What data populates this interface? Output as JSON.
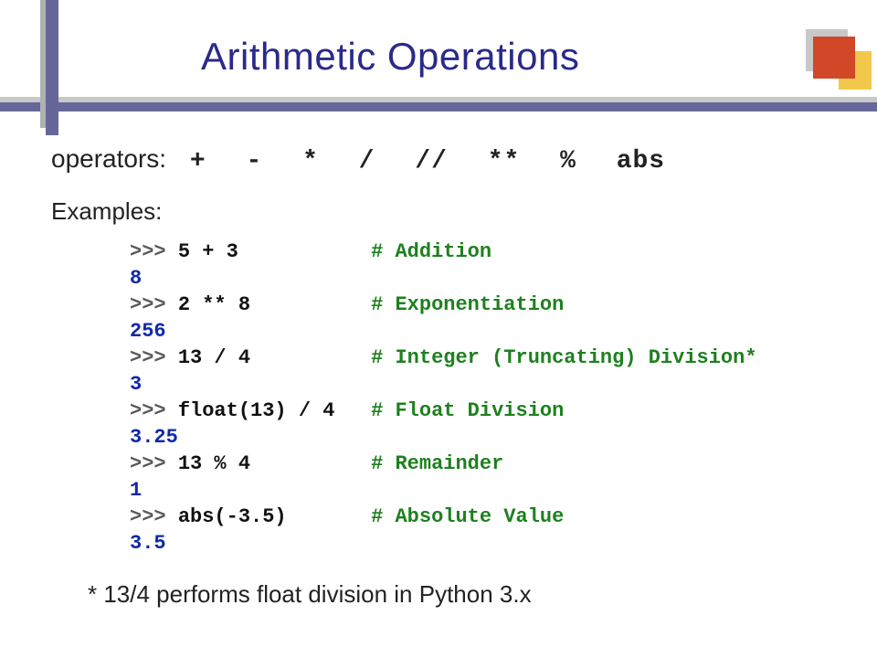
{
  "title": "Arithmetic Operations",
  "operators_label": "operators:",
  "operators_list": "+  -  *  /  //  **  %  abs",
  "examples_label": "Examples:",
  "code": {
    "prompt": ">>> ",
    "lines": [
      {
        "expr": "5 + 3",
        "pad": 11,
        "comment": "# Addition"
      },
      {
        "result": "8"
      },
      {
        "expr": "2 ** 8",
        "pad": 10,
        "comment": "# Exponentiation"
      },
      {
        "result": "256"
      },
      {
        "expr": "13 / 4",
        "pad": 10,
        "comment": "# Integer (Truncating) Division*"
      },
      {
        "result": "3"
      },
      {
        "expr": "float(13) / 4",
        "pad": 3,
        "comment": "# Float Division"
      },
      {
        "result": "3.25"
      },
      {
        "expr": "13 % 4",
        "pad": 10,
        "comment": "# Remainder"
      },
      {
        "result": "1"
      },
      {
        "expr": "abs(-3.5)",
        "pad": 7,
        "comment": "# Absolute Value"
      },
      {
        "result": "3.5"
      }
    ]
  },
  "footnote": "* 13/4 performs float division in Python 3.x",
  "colors": {
    "title": "#2a2a8a",
    "bar": "#666699",
    "shadow": "#c8c8c8",
    "red": "#d04828",
    "yellow": "#f2c84c",
    "prompt": "#5a5a5a",
    "comment": "#1e801e",
    "result": "#1029a8",
    "background": "#ffffff"
  },
  "fonts": {
    "title_size_pt": 42,
    "body_size_pt": 28,
    "code_family": "Courier New",
    "code_size_pt": 22
  }
}
